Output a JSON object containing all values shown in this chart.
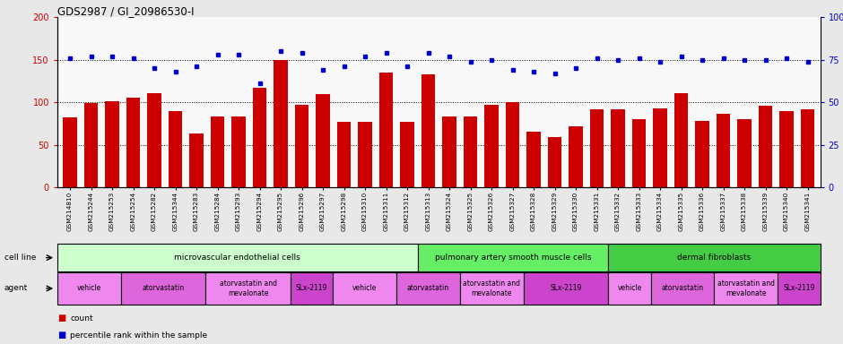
{
  "title": "GDS2987 / GI_20986530-I",
  "gsm_labels": [
    "GSM214810",
    "GSM215244",
    "GSM215253",
    "GSM215254",
    "GSM215282",
    "GSM215344",
    "GSM215283",
    "GSM215284",
    "GSM215293",
    "GSM215294",
    "GSM215295",
    "GSM215296",
    "GSM215297",
    "GSM215298",
    "GSM215310",
    "GSM215311",
    "GSM215312",
    "GSM215313",
    "GSM215324",
    "GSM215325",
    "GSM215326",
    "GSM215327",
    "GSM215328",
    "GSM215329",
    "GSM215330",
    "GSM215331",
    "GSM215332",
    "GSM215333",
    "GSM215334",
    "GSM215335",
    "GSM215336",
    "GSM215337",
    "GSM215338",
    "GSM215339",
    "GSM215340",
    "GSM215341"
  ],
  "count_values": [
    82,
    99,
    101,
    106,
    111,
    90,
    63,
    83,
    83,
    117,
    150,
    97,
    110,
    77,
    77,
    135,
    77,
    133,
    83,
    83,
    97,
    100,
    66,
    59,
    72,
    92,
    92,
    80,
    93,
    111,
    78,
    87,
    80,
    96,
    90,
    92
  ],
  "percentile_values": [
    76,
    77,
    77,
    76,
    70,
    68,
    71,
    78,
    78,
    61,
    80,
    79,
    69,
    71,
    77,
    79,
    71,
    79,
    77,
    74,
    75,
    69,
    68,
    67,
    70,
    76,
    75,
    76,
    74,
    77,
    75,
    76,
    75,
    75,
    76,
    74
  ],
  "bar_color": "#cc0000",
  "dot_color": "#0000cc",
  "left_ylim": [
    0,
    200
  ],
  "right_ylim": [
    0,
    100
  ],
  "left_yticks": [
    0,
    50,
    100,
    150,
    200
  ],
  "right_yticks": [
    0,
    25,
    50,
    75,
    100
  ],
  "cell_line_groups": [
    {
      "label": "microvascular endothelial cells",
      "start": 0,
      "end": 17,
      "color": "#ccffcc"
    },
    {
      "label": "pulmonary artery smooth muscle cells",
      "start": 17,
      "end": 26,
      "color": "#66ee66"
    },
    {
      "label": "dermal fibroblasts",
      "start": 26,
      "end": 36,
      "color": "#44cc44"
    }
  ],
  "agent_groups": [
    {
      "label": "vehicle",
      "start": 0,
      "end": 3,
      "color": "#ee88ee"
    },
    {
      "label": "atorvastatin",
      "start": 3,
      "end": 7,
      "color": "#dd66dd"
    },
    {
      "label": "atorvastatin and\nmevalonate",
      "start": 7,
      "end": 11,
      "color": "#ee88ee"
    },
    {
      "label": "SLx-2119",
      "start": 11,
      "end": 13,
      "color": "#cc44cc"
    },
    {
      "label": "vehicle",
      "start": 13,
      "end": 16,
      "color": "#ee88ee"
    },
    {
      "label": "atorvastatin",
      "start": 16,
      "end": 19,
      "color": "#dd66dd"
    },
    {
      "label": "atorvastatin and\nmevalonate",
      "start": 19,
      "end": 22,
      "color": "#ee88ee"
    },
    {
      "label": "SLx-2119",
      "start": 22,
      "end": 26,
      "color": "#cc44cc"
    },
    {
      "label": "vehicle",
      "start": 26,
      "end": 28,
      "color": "#ee88ee"
    },
    {
      "label": "atorvastatin",
      "start": 28,
      "end": 31,
      "color": "#dd66dd"
    },
    {
      "label": "atorvastatin and\nmevalonate",
      "start": 31,
      "end": 34,
      "color": "#ee88ee"
    },
    {
      "label": "SLx-2119",
      "start": 34,
      "end": 36,
      "color": "#cc44cc"
    }
  ],
  "bg_color": "#e8e8e8",
  "plot_bg_color": "#f8f8f8",
  "hgrid_color": "#000000",
  "hgrid_yticks": [
    50,
    100,
    150
  ]
}
